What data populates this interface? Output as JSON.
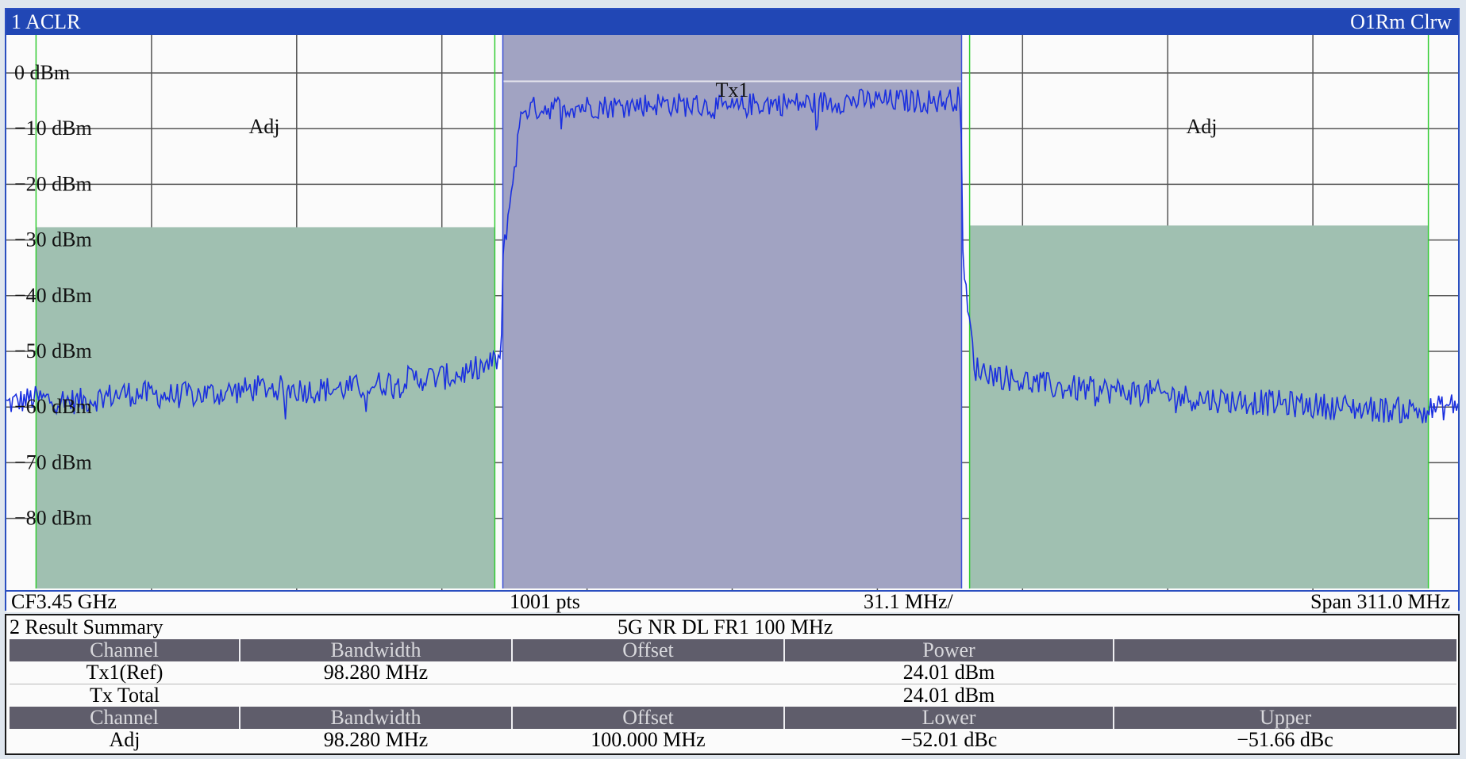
{
  "diagram": {
    "title": "1 ACLR",
    "trace_info": "O1Rm Clrw",
    "y_axis_labels": [
      "0 dBm",
      "−10 dBm",
      "−20 dBm",
      "−30 dBm",
      "−40 dBm",
      "−50 dBm",
      "−60 dBm",
      "−70 dBm",
      "−80 dBm"
    ],
    "channel_labels": {
      "tx": "Tx1",
      "adj_lower": "Adj",
      "adj_upper": "Adj"
    },
    "footer": {
      "center_frequency": "CF3.45 GHz",
      "points": "1001 pts",
      "per_division": "31.1 MHz/",
      "span": "Span 311.0 MHz"
    },
    "colors": {
      "trace": "#1a2fe0",
      "tx_channel": "#a1a3c2",
      "adj_channel": "#a0c0b1",
      "title_bar": "#2147b5",
      "grid": "#555555",
      "channel_border": "#33cc33"
    }
  },
  "chart_data": {
    "type": "line",
    "title": "",
    "xlabel": "",
    "ylabel": "",
    "x_center_ghz": 3.45,
    "span_mhz": 311.0,
    "ylim": [
      -90,
      10
    ],
    "grid": true,
    "tx_channel_power_dbm": -1.5,
    "adj_channel_power_dbm": {
      "lower": -27.7,
      "upper": -27.4
    },
    "series": [
      {
        "x_mhz": [
          -155.5,
          -150,
          -140,
          -130,
          -120,
          -110,
          -100,
          -90,
          -80,
          -70,
          -60,
          -52,
          -49.5,
          -49,
          -45,
          -35,
          -25,
          -15,
          -5,
          0,
          5,
          15,
          25,
          35,
          45,
          49,
          49.5,
          52,
          60,
          70,
          80,
          90,
          100,
          110,
          120,
          130,
          140,
          150,
          155.5
        ],
        "y_dbm": [
          -59.5,
          -58.5,
          -59,
          -57.5,
          -58,
          -57.5,
          -56.5,
          -57,
          -56.5,
          -55,
          -54.5,
          -52.5,
          -51,
          -32,
          -6.5,
          -6,
          -6,
          -5.5,
          -6,
          -6.5,
          -5.5,
          -5.5,
          -5,
          -5,
          -5,
          -4.5,
          -36,
          -53,
          -55,
          -56.5,
          -57,
          -57.5,
          -58.5,
          -59,
          -59.5,
          -60,
          -60.5,
          -60.5,
          -59.5
        ]
      }
    ]
  },
  "summary": {
    "title": "2 Result Summary",
    "standard": "5G NR DL FR1 100 MHz",
    "tx_header": [
      "Channel",
      "Bandwidth",
      "Offset",
      "Power",
      ""
    ],
    "tx_rows": [
      {
        "channel": "Tx1(Ref)",
        "bandwidth": "98.280 MHz",
        "offset": "",
        "power": "24.01 dBm"
      },
      {
        "channel": "Tx Total",
        "bandwidth": "",
        "offset": "",
        "power": "24.01 dBm"
      }
    ],
    "adj_header": [
      "Channel",
      "Bandwidth",
      "Offset",
      "Lower",
      "Upper"
    ],
    "adj_rows": [
      {
        "channel": "Adj",
        "bandwidth": "98.280 MHz",
        "offset": "100.000 MHz",
        "lower": "−52.01 dBc",
        "upper": "−51.66 dBc"
      }
    ]
  }
}
